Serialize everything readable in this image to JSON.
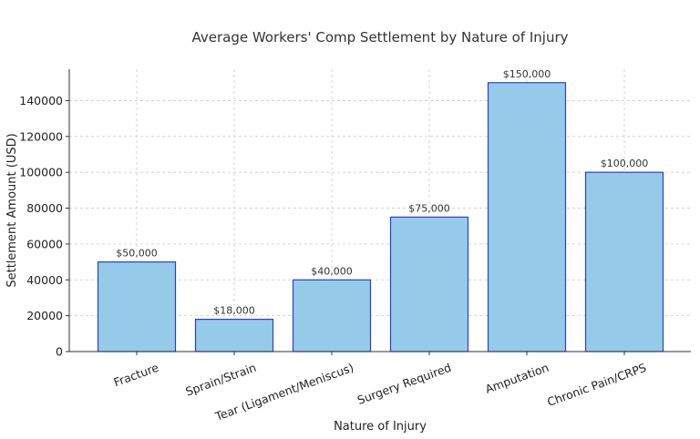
{
  "chart_data": {
    "type": "bar",
    "title": "Average Workers' Comp Settlement by Nature of Injury",
    "xlabel": "Nature of Injury",
    "ylabel": "Settlement Amount (USD)",
    "categories": [
      "Fracture",
      "Sprain/Strain",
      "Tear (Ligament/Meniscus)",
      "Surgery Required",
      "Amputation",
      "Chronic Pain/CRPS"
    ],
    "values": [
      50000,
      18000,
      40000,
      75000,
      150000,
      100000
    ],
    "data_labels": [
      "$50,000",
      "$18,000",
      "$40,000",
      "$75,000",
      "$150,000",
      "$100,000"
    ],
    "ylim": [
      0,
      157500
    ],
    "yticks": [
      0,
      20000,
      40000,
      60000,
      80000,
      100000,
      120000,
      140000
    ],
    "ytick_labels": [
      "0",
      "20000",
      "40000",
      "60000",
      "80000",
      "100000",
      "120000",
      "140000"
    ],
    "grid": true,
    "colors": {
      "bar_fill": "#95cbe8",
      "bar_edge": "#2b3fd6"
    }
  }
}
